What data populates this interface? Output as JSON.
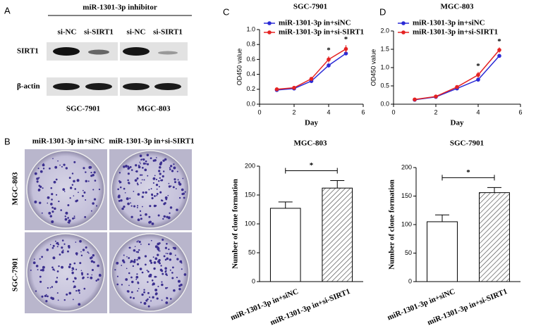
{
  "panel_labels": [
    "A",
    "B",
    "C",
    "D"
  ],
  "western_blot": {
    "header": "miR-1301-3p inhibitor",
    "lanes": [
      "si-NC",
      "si-SIRT1",
      "si-NC",
      "si-SIRT1"
    ],
    "rows": [
      "SIRT1",
      "β-actin"
    ],
    "cell_lines": [
      "SGC-7901",
      "MGC-803"
    ]
  },
  "colony": {
    "columns": [
      "miR-1301-3p in+siNC",
      "miR-1301-3p in+si-SIRT1"
    ],
    "rows": [
      "MGC-803",
      "SGC-7901"
    ]
  },
  "chart_data": [
    {
      "type": "line",
      "title": "SGC-7901",
      "x_label": "Day",
      "y_label": "OD450 value",
      "x": [
        1,
        2,
        3,
        4,
        5
      ],
      "xlim": [
        0,
        6
      ],
      "xticks": [
        0,
        2,
        4,
        6
      ],
      "ylim": [
        0,
        1.0
      ],
      "yticks": [
        {
          "value": 0,
          "label": "0.0"
        },
        0.2,
        0.4,
        0.6,
        0.8,
        {
          "value": 1.0,
          "label": "1.0"
        }
      ],
      "series": [
        {
          "name": "miR-1301-3p in+siNC",
          "color": "#2b2bd6",
          "values": [
            0.19,
            0.21,
            0.31,
            0.52,
            0.68
          ],
          "errors": [
            0.01,
            0.01,
            0.02,
            0.03,
            0.02
          ]
        },
        {
          "name": "miR-1301-3p in+si-SIRT1",
          "color": "#e52222",
          "values": [
            0.2,
            0.22,
            0.34,
            0.6,
            0.74
          ],
          "errors": [
            0.01,
            0.01,
            0.01,
            0.04,
            0.05
          ]
        }
      ],
      "annotations": [
        {
          "text": "*",
          "x": 4
        },
        {
          "text": "*",
          "x": 5
        }
      ]
    },
    {
      "type": "line",
      "title": "MGC-803",
      "x_label": "Day",
      "y_label": "OD450 value",
      "x": [
        1,
        2,
        3,
        4,
        5
      ],
      "xlim": [
        0,
        6
      ],
      "xticks": [
        0,
        2,
        4,
        6
      ],
      "ylim": [
        0,
        2.0
      ],
      "yticks": [
        {
          "value": 0,
          "label": "0.0"
        },
        0.5,
        {
          "value": 1.0,
          "label": "1.0"
        },
        1.5,
        {
          "value": 2.0,
          "label": "2.0"
        }
      ],
      "series": [
        {
          "name": "miR-1301-3p in+siNC",
          "color": "#2b2bd6",
          "values": [
            0.12,
            0.2,
            0.43,
            0.67,
            1.32
          ],
          "errors": [
            0.01,
            0.01,
            0.02,
            0.03,
            0.05
          ]
        },
        {
          "name": "miR-1301-3p in+si-SIRT1",
          "color": "#e52222",
          "values": [
            0.13,
            0.21,
            0.47,
            0.8,
            1.48
          ],
          "errors": [
            0.01,
            0.01,
            0.02,
            0.08,
            0.07
          ]
        }
      ],
      "annotations": [
        {
          "text": "*",
          "x": 4
        },
        {
          "text": "*",
          "x": 5
        }
      ]
    },
    {
      "type": "bar",
      "title": "MGC-803",
      "y_label": "Number of clone formation",
      "categories": [
        "miR-1301-3p in+siNC",
        "miR-1301-3p in+si-SIRT1"
      ],
      "values": [
        127,
        162
      ],
      "errors": [
        11,
        13
      ],
      "patterns": [
        "plain",
        "hatch"
      ],
      "color": "#000000",
      "ylim": [
        0,
        200
      ],
      "yticks": [
        0,
        50,
        100,
        150,
        200
      ],
      "annotation": "*"
    },
    {
      "type": "bar",
      "title": "SGC-7901",
      "y_label": "Number of clone formation",
      "categories": [
        "miR-1301-3p in+siNC",
        "miR-1301-3p in+si-SIRT1"
      ],
      "values": [
        105,
        156
      ],
      "errors": [
        12,
        9
      ],
      "patterns": [
        "plain",
        "hatch"
      ],
      "color": "#000000",
      "ylim": [
        0,
        200
      ],
      "yticks": [
        0,
        50,
        100,
        150,
        200
      ],
      "annotation": "*"
    }
  ]
}
